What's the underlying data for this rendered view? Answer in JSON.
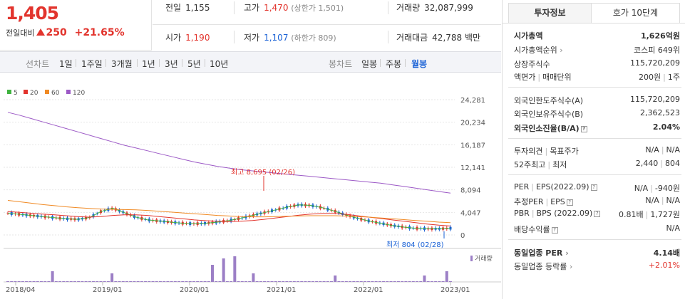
{
  "quote": {
    "price": "1,405",
    "change_label": "전일대비",
    "change_value": "250",
    "change_pct": "+21.65%"
  },
  "stats": {
    "prev_label": "전일",
    "prev_value": "1,155",
    "high_label": "고가",
    "high_value": "1,470",
    "high_limit": "(상한가 1,501)",
    "volume_label": "거래량",
    "volume_value": "32,087,999",
    "open_label": "시가",
    "open_value": "1,190",
    "low_label": "저가",
    "low_value": "1,107",
    "low_limit": "(하한가 809)",
    "amount_label": "거래대금",
    "amount_value": "42,788",
    "amount_unit": "백만"
  },
  "period_bar": {
    "line_label": "선차트",
    "line_items": [
      "1일",
      "1주일",
      "3개월",
      "1년",
      "3년",
      "5년",
      "10년"
    ],
    "candle_label": "봉차트",
    "candle_items": [
      "일봉",
      "주봉",
      "월봉"
    ],
    "candle_active": "월봉"
  },
  "legend": [
    {
      "label": "5",
      "color": "#3fb33f"
    },
    {
      "label": "20",
      "color": "#e2342d"
    },
    {
      "label": "60",
      "color": "#f08a24"
    },
    {
      "label": "120",
      "color": "#9c59c6"
    }
  ],
  "chart_data": {
    "type": "candlestick",
    "y_ticks": [
      "24,281",
      "20,234",
      "16,187",
      "12,141",
      "8,094",
      "4,047",
      "0"
    ],
    "ylim": [
      0,
      24281
    ],
    "x_ticks": [
      "2018/04",
      "2019/01",
      "2020/01",
      "2021/01",
      "2022/01",
      "2023/01"
    ],
    "high_annotation": "최고 8,695 (02/26)",
    "low_annotation": "최저 804 (02/28)",
    "volume_label": "거래량",
    "series": [
      {
        "name": "5",
        "values": [
          3900,
          3700,
          3500,
          3300,
          3100,
          2900,
          2800,
          3100,
          4200,
          4800,
          4000,
          3200,
          2700,
          2500,
          2300,
          2100,
          2000,
          2100,
          2300,
          2600,
          3000,
          3500,
          4000,
          4500,
          5000,
          5400,
          5300,
          4900,
          4300,
          3600,
          3000,
          2500,
          2100,
          1700,
          1400,
          1200,
          1100,
          1100,
          1200
        ]
      },
      {
        "name": "20",
        "values": [
          4200,
          4050,
          3900,
          3750,
          3600,
          3450,
          3300,
          3200,
          3300,
          3500,
          3600,
          3600,
          3500,
          3300,
          3100,
          2900,
          2700,
          2550,
          2450,
          2400,
          2450,
          2600,
          2800,
          3050,
          3300,
          3550,
          3750,
          3850,
          3850,
          3700,
          3450,
          3200,
          2950,
          2700,
          2450,
          2200,
          1950,
          1750,
          1600
        ]
      },
      {
        "name": "60",
        "values": [
          6200,
          5950,
          5700,
          5450,
          5250,
          5050,
          4900,
          4750,
          4650,
          4600,
          4550,
          4500,
          4400,
          4250,
          4100,
          3950,
          3800,
          3650,
          3500,
          3400,
          3300,
          3250,
          3250,
          3300,
          3350,
          3400,
          3450,
          3450,
          3450,
          3400,
          3300,
          3200,
          3050,
          2900,
          2750,
          2600,
          2450,
          2300,
          2200
        ]
      },
      {
        "name": "120",
        "values": [
          22000,
          21500,
          20900,
          20300,
          19700,
          19100,
          18500,
          17900,
          17300,
          16700,
          16100,
          15600,
          15100,
          14600,
          14100,
          13600,
          13100,
          12700,
          12300,
          12000,
          11700,
          11500,
          11300,
          11100,
          10900,
          10700,
          10500,
          10300,
          10100,
          9900,
          9700,
          9500,
          9300,
          9000,
          8700,
          8400,
          8100,
          7800,
          7500
        ]
      }
    ]
  },
  "tabs": {
    "info": "투자정보",
    "orderbook": "호가 10단계"
  },
  "info": {
    "market_cap_label": "시가총액",
    "market_cap_value": "1,626억원",
    "rank_label": "시가총액순위",
    "rank_value": "코스피 649위",
    "shares_label": "상장주식수",
    "shares_value": "115,720,209",
    "par_label": "액면가",
    "par_sep": "매매단위",
    "par_value": "200원",
    "unit_value": "1주",
    "foreign_limit_label": "외국인한도주식수(A)",
    "foreign_limit_value": "115,720,209",
    "foreign_hold_label": "외국인보유주식수(B)",
    "foreign_hold_value": "2,362,523",
    "foreign_ratio_label": "외국인소진율(B/A)",
    "foreign_ratio_value": "2.04%",
    "opinion_label": "투자의견",
    "target_label": "목표주가",
    "opinion_value": "N/A",
    "target_value": "N/A",
    "w52_label": "52주최고",
    "w52_low_label": "최저",
    "w52_high_value": "2,440",
    "w52_low_value": "804",
    "per_label": "PER",
    "eps_label": "EPS(2022.09)",
    "per_value": "N/A",
    "eps_value": "-940원",
    "est_per_label": "추정PER",
    "est_eps_label": "EPS",
    "est_per_value": "N/A",
    "est_eps_value": "N/A",
    "pbr_label": "PBR",
    "bps_label": "BPS (2022.09)",
    "pbr_value": "0.81배",
    "bps_value": "1,727원",
    "dividend_label": "배당수익률",
    "dividend_value": "N/A",
    "sector_per_label": "동일업종 PER",
    "sector_per_value": "4.14배",
    "sector_rate_label": "동일업종 등락률",
    "sector_rate_value": "+2.01%"
  }
}
